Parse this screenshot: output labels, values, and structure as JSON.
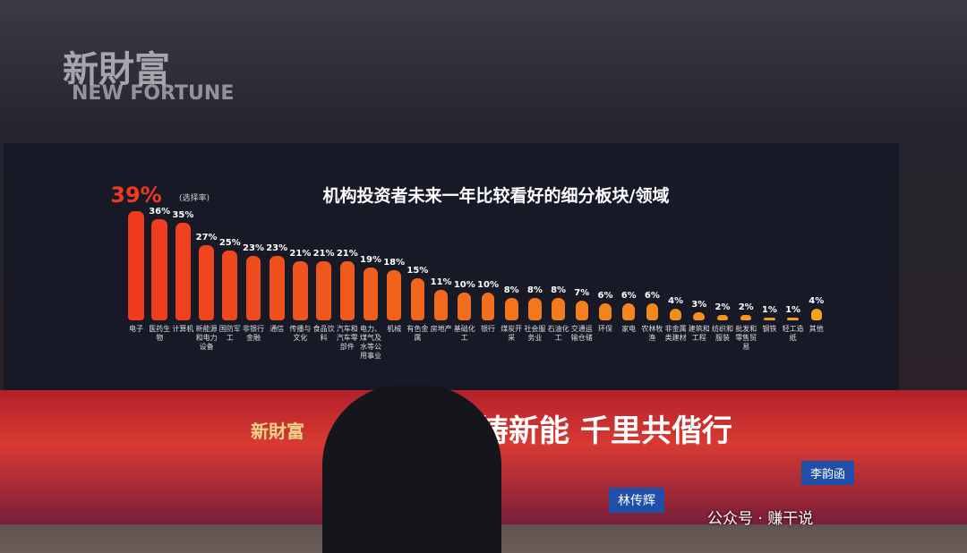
{
  "chart_data": {
    "type": "bar",
    "title": "机构投资者未来一年比较看好的细分板块/领域",
    "annotation": "(选择率)",
    "categories": [
      "电子",
      "医药生物",
      "计算机",
      "新能源和电力设备",
      "国防军工",
      "非银行金融",
      "通信",
      "传播与文化",
      "食品饮料",
      "汽车和汽车零部件",
      "电力、煤气及水等公用事业",
      "机械",
      "有色金属",
      "房地产",
      "基础化工",
      "银行",
      "煤炭开采",
      "社会服务业",
      "石油化工",
      "交通运输仓储",
      "环保",
      "家电",
      "农林牧渔",
      "非金属类建材",
      "建筑和工程",
      "纺织和服装",
      "批发和零售贸易",
      "钢铁",
      "轻工造纸",
      "其他"
    ],
    "values": [
      39,
      36,
      35,
      27,
      25,
      23,
      23,
      21,
      21,
      21,
      19,
      18,
      15,
      11,
      10,
      10,
      8,
      8,
      8,
      7,
      6,
      6,
      6,
      4,
      3,
      2,
      2,
      1,
      1,
      4
    ],
    "value_labels": [
      "39%",
      "36%",
      "35%",
      "27%",
      "25%",
      "23%",
      "23%",
      "21%",
      "21%",
      "21%",
      "19%",
      "18%",
      "15%",
      "11%",
      "10%",
      "10%",
      "8%",
      "8%",
      "8%",
      "7%",
      "6%",
      "6%",
      "6%",
      "4%",
      "3%",
      "2%",
      "2%",
      "1%",
      "1%",
      "4%"
    ],
    "colors": [
      "#ee3a1e",
      "#f6a31c"
    ]
  },
  "scene": {
    "brand": "新財富",
    "brand_en": "NEW FORTUNE",
    "slogan": "变铸新能  千里共偕行",
    "nameplates": [
      "林传辉",
      "李韵函"
    ],
    "watermark": "公众号 · 赚干说"
  }
}
